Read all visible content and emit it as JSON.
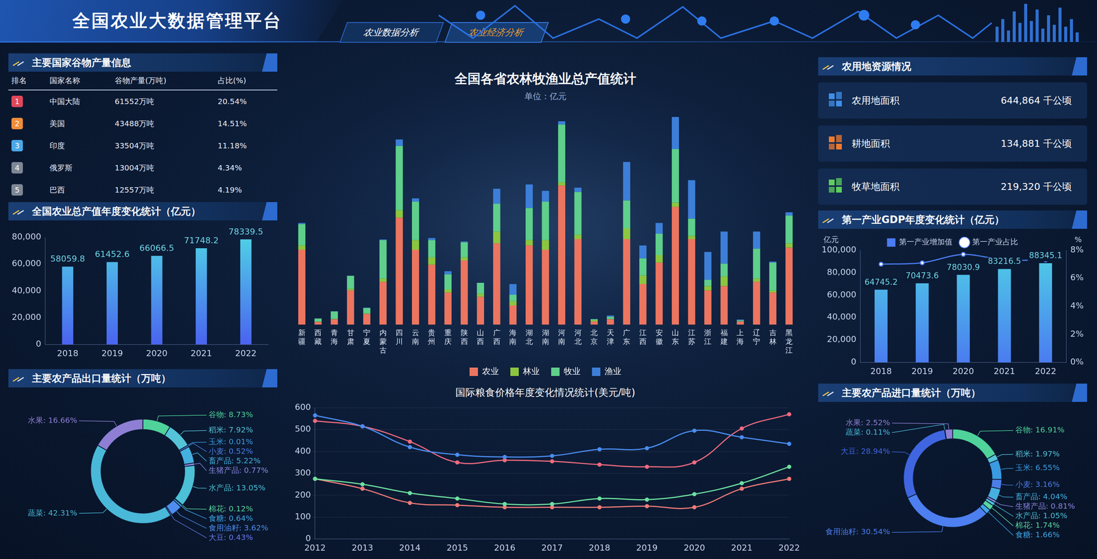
{
  "header": {
    "title": "全国农业大数据管理平台",
    "tabs": [
      "农业数据分析",
      "农业经济分析"
    ]
  },
  "grain_table": {
    "title": "主要国家谷物产量信息",
    "columns": [
      "排名",
      "国家名称",
      "谷物产量(万吨)",
      "占比(%)"
    ],
    "rows": [
      [
        1,
        "中国大陆",
        "61552万吨",
        "20.54%"
      ],
      [
        2,
        "美国",
        "43488万吨",
        "14.51%"
      ],
      [
        3,
        "印度",
        "33504万吨",
        "11.18%"
      ],
      [
        4,
        "俄罗斯",
        "13004万吨",
        "4.34%"
      ],
      [
        5,
        "巴西",
        "12557万吨",
        "4.19%"
      ]
    ]
  },
  "land": {
    "title": "农用地资源情况",
    "items": [
      {
        "label": "农用地面积",
        "value": "644,864",
        "unit": "千公顷",
        "color": "#3f8fe8"
      },
      {
        "label": "耕地面积",
        "value": "134,881",
        "unit": "千公顷",
        "color": "#f07a2e"
      },
      {
        "label": "牧草地面积",
        "value": "219,320",
        "unit": "千公顷",
        "color": "#5ccf5c"
      }
    ]
  },
  "chart_data": [
    {
      "type": "bar",
      "title": "全国农业总产值年度变化统计（亿元）",
      "categories": [
        "2018",
        "2019",
        "2020",
        "2021",
        "2022"
      ],
      "values": [
        58059.8,
        61452.6,
        66066.5,
        71748.2,
        78339.5
      ],
      "color": "#4a63f0",
      "ylim": [
        0,
        80000
      ],
      "yticks": [
        0,
        {
          "value": 20000,
          "label": "20,000"
        },
        {
          "value": 40000,
          "label": "40,000"
        },
        {
          "value": 60000,
          "label": "60,000"
        },
        {
          "value": 80000,
          "label": "80,000"
        }
      ],
      "grid": false,
      "data_labels": true
    },
    {
      "type": "doughnut",
      "title": "主要农产品出口量统计（万吨）",
      "categories": [
        "谷物",
        "稻米",
        "玉米",
        "小麦",
        "畜产品",
        "生猪产品",
        "水产品",
        "棉花",
        "食糖",
        "食用油籽",
        "大豆",
        "蔬菜",
        "水果"
      ],
      "values": [
        8.73,
        7.92,
        0.01,
        0.52,
        5.22,
        0.77,
        13.05,
        0.12,
        0.64,
        3.62,
        0.43,
        42.31,
        16.66
      ],
      "value_labels": [
        "谷物: 8.73%",
        "稻米: 7.92%",
        "玉米: 0.01%",
        "小麦: 0.52%",
        "畜产品: 5.22%",
        "生猪产品: 0.77%",
        "水产品: 13.05%",
        "棉花: 0.12%",
        "食糖: 0.64%",
        "食用油籽: 3.62%",
        "大豆: 0.43%",
        "蔬菜: 42.31%",
        "水果: 16.66%"
      ],
      "colors": [
        "#4fd39a",
        "#55c3d8",
        "#3b9be0",
        "#4c7ee6",
        "#45b0e0",
        "#8a86e0",
        "#4cc0d6",
        "#5ad6a0",
        "#3fa6e6",
        "#4f8ef0",
        "#6a78ec",
        "#4ab8d8",
        "#8e7fd4"
      ],
      "data_labels": true
    },
    {
      "type": "bar",
      "title": "全国各省农林牧渔业总产值统计",
      "subtitle": "单位：亿元",
      "stacked": true,
      "categories": [
        "新疆",
        "西藏",
        "青海",
        "甘肃",
        "宁夏",
        "内蒙古",
        "四川",
        "云南",
        "贵州",
        "重庆",
        "陕西",
        "山西",
        "广西",
        "海南",
        "湖北",
        "湖南",
        "河南",
        "河北",
        "北京",
        "天津",
        "广东",
        "江西",
        "安徽",
        "山东",
        "江苏",
        "浙江",
        "福建",
        "上海",
        "辽宁",
        "吉林",
        "黑龙江"
      ],
      "series": [
        {
          "name": "农业",
          "color": "#ec7560",
          "values": [
            3500,
            130,
            250,
            1600,
            500,
            2000,
            5000,
            3500,
            2800,
            1500,
            3000,
            1300,
            3800,
            900,
            3700,
            3500,
            6500,
            4000,
            150,
            250,
            4000,
            1900,
            2900,
            5500,
            4000,
            1600,
            1800,
            150,
            2000,
            1500,
            3600
          ]
        },
        {
          "name": "林业",
          "color": "#8cc63f",
          "values": [
            200,
            10,
            20,
            80,
            30,
            150,
            350,
            450,
            350,
            150,
            150,
            150,
            550,
            200,
            250,
            450,
            150,
            200,
            60,
            20,
            500,
            400,
            350,
            200,
            150,
            200,
            450,
            10,
            150,
            100,
            200
          ]
        },
        {
          "name": "牧业",
          "color": "#5fcf8c",
          "values": [
            1000,
            150,
            350,
            600,
            250,
            1800,
            3000,
            1800,
            800,
            700,
            700,
            500,
            1300,
            300,
            1500,
            1800,
            2700,
            2000,
            50,
            100,
            1300,
            800,
            1000,
            2500,
            800,
            300,
            600,
            40,
            1400,
            1300,
            1300
          ]
        },
        {
          "name": "渔业",
          "color": "#3d7fd8",
          "values": [
            50,
            1,
            10,
            15,
            20,
            30,
            300,
            150,
            100,
            150,
            40,
            10,
            700,
            500,
            1100,
            500,
            150,
            200,
            5,
            60,
            1800,
            600,
            500,
            1500,
            1800,
            1300,
            1500,
            40,
            800,
            50,
            150
          ]
        }
      ],
      "ylim": [
        0,
        10000
      ],
      "tick_labels": "x",
      "grid": false,
      "legend": "bottom"
    },
    {
      "type": "line",
      "title": "国际粮食价格年度变化情况统计(美元/吨)",
      "categories": [
        "2012",
        "2013",
        "2014",
        "2015",
        "2016",
        "2017",
        "2018",
        "2019",
        "2020",
        "2021",
        "2022"
      ],
      "series": [
        {
          "color": "#4a8cf0",
          "values": [
            565,
            515,
            420,
            385,
            375,
            380,
            410,
            415,
            495,
            465,
            435
          ]
        },
        {
          "color": "#f06a80",
          "values": [
            540,
            515,
            445,
            350,
            360,
            355,
            340,
            330,
            350,
            505,
            570
          ]
        },
        {
          "color": "#6ee0a0",
          "values": [
            275,
            250,
            210,
            185,
            160,
            160,
            185,
            180,
            205,
            255,
            330
          ]
        },
        {
          "color": "#f07a78",
          "values": [
            275,
            230,
            165,
            155,
            145,
            145,
            145,
            150,
            145,
            230,
            275
          ]
        }
      ],
      "ylim": [
        0,
        600
      ],
      "yticks": [
        0,
        100,
        200,
        300,
        400,
        500,
        600
      ],
      "grid": true,
      "marker": "circle"
    },
    {
      "type": "bar",
      "title": "第一产业GDP年度变化统计（亿元）",
      "y_label": "亿元",
      "y2_label": "%",
      "categories": [
        "2018",
        "2019",
        "2020",
        "2021",
        "2022"
      ],
      "series": [
        {
          "name": "第一产业增加值",
          "type": "bar",
          "color": "#4a7cf0",
          "values": [
            64745.2,
            70473.6,
            78030.9,
            83216.5,
            88345.1
          ],
          "data_labels": true
        },
        {
          "name": "第一产业占比",
          "type": "line",
          "axis": "y2",
          "color": "#4a7cf0",
          "marker": "circle",
          "values": [
            7.0,
            7.1,
            7.7,
            7.3,
            7.3
          ]
        }
      ],
      "ylim": [
        0,
        100000
      ],
      "yticks": [
        0,
        {
          "value": 20000,
          "label": "20,000"
        },
        {
          "value": 40000,
          "label": "40,000"
        },
        {
          "value": 60000,
          "label": "60,000"
        },
        {
          "value": 80000,
          "label": "80,000"
        },
        {
          "value": 100000,
          "label": "100,000"
        }
      ],
      "y2lim": [
        0,
        8
      ],
      "y2ticks": [
        {
          "value": 0,
          "label": "0%"
        },
        {
          "value": 2,
          "label": "2%"
        },
        {
          "value": 4,
          "label": "4%"
        },
        {
          "value": 6,
          "label": "6%"
        },
        {
          "value": 8,
          "label": "8%"
        }
      ],
      "legend": "top",
      "grid": false
    },
    {
      "type": "doughnut",
      "title": "主要农产品进口量统计（万吨）",
      "categories": [
        "谷物",
        "稻米",
        "玉米",
        "小麦",
        "畜产品",
        "生猪产品",
        "水产品",
        "棉花",
        "食糖",
        "食用油籽",
        "大豆",
        "蔬菜",
        "水果"
      ],
      "values": [
        16.91,
        1.97,
        6.55,
        3.16,
        4.04,
        0.81,
        1.05,
        1.74,
        1.66,
        30.54,
        28.94,
        0.11,
        2.52
      ],
      "value_labels": [
        "谷物: 16.91%",
        "稻米: 1.97%",
        "玉米: 6.55%",
        "小麦: 3.16%",
        "畜产品: 4.04%",
        "生猪产品: 0.81%",
        "水产品: 1.05%",
        "棉花: 1.74%",
        "食糖: 1.66%",
        "食用油籽: 30.54%",
        "大豆: 28.94%",
        "蔬菜: 0.11%",
        "水果: 2.52%"
      ],
      "colors": [
        "#4fd39a",
        "#55c3d8",
        "#3b9be0",
        "#4c7ee6",
        "#45b0e0",
        "#8a86e0",
        "#4cc0d6",
        "#5ad6a0",
        "#3fa6e6",
        "#4d7ff0",
        "#3f66e0",
        "#4ab8d8",
        "#8e7fd4"
      ],
      "data_labels": true
    }
  ]
}
